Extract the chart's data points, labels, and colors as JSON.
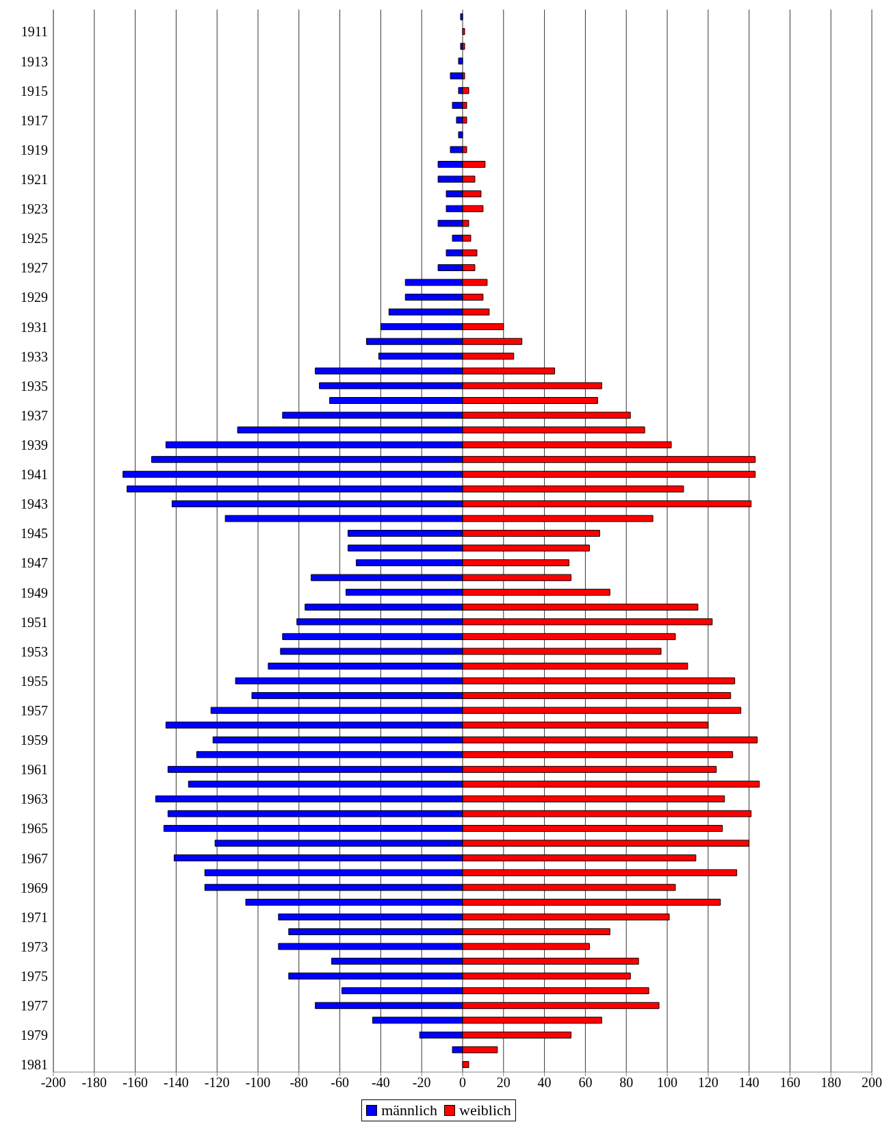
{
  "chart_data": {
    "type": "bar",
    "orientation": "horizontal",
    "stacked": true,
    "categories": [
      null,
      "1911",
      null,
      "1913",
      null,
      "1915",
      null,
      "1917",
      null,
      "1919",
      null,
      "1921",
      null,
      "1923",
      null,
      "1925",
      null,
      "1927",
      null,
      "1929",
      null,
      "1931",
      null,
      "1933",
      null,
      "1935",
      null,
      "1937",
      null,
      "1939",
      null,
      "1941",
      null,
      "1943",
      null,
      "1945",
      null,
      "1947",
      null,
      "1949",
      null,
      "1951",
      null,
      "1953",
      null,
      "1955",
      null,
      "1957",
      null,
      "1959",
      null,
      "1961",
      null,
      "1963",
      null,
      "1965",
      null,
      "1967",
      null,
      "1969",
      null,
      "1971",
      null,
      "1973",
      null,
      "1975",
      null,
      "1977",
      null,
      "1979",
      null,
      "1981"
    ],
    "series": [
      {
        "name": "männlich",
        "color": "#0000ff",
        "values": [
          -1,
          0,
          -1,
          -2,
          -6,
          -2,
          -5,
          -3,
          -2,
          -6,
          -12,
          -12,
          -8,
          -8,
          -12,
          -5,
          -8,
          -12,
          -28,
          -28,
          -36,
          -40,
          -47,
          -41,
          -72,
          -70,
          -65,
          -88,
          -110,
          -145,
          -152,
          -166,
          -164,
          -142,
          -116,
          -56,
          -56,
          -52,
          -74,
          -57,
          -77,
          -81,
          -88,
          -89,
          -95,
          -111,
          -103,
          -123,
          -145,
          -122,
          -130,
          -144,
          -134,
          -150,
          -144,
          -146,
          -121,
          -141,
          -126,
          -126,
          -106,
          -90,
          -85,
          -90,
          -64,
          -85,
          -59,
          -72,
          -44,
          -21,
          -5,
          0
        ]
      },
      {
        "name": "weiblich",
        "color": "#ff0000",
        "values": [
          0,
          1,
          1,
          0,
          1,
          3,
          2,
          2,
          0,
          2,
          11,
          6,
          9,
          10,
          3,
          4,
          7,
          6,
          12,
          10,
          13,
          20,
          29,
          25,
          45,
          68,
          66,
          82,
          89,
          102,
          143,
          143,
          108,
          141,
          93,
          67,
          62,
          52,
          53,
          72,
          115,
          122,
          104,
          97,
          110,
          133,
          131,
          136,
          120,
          144,
          132,
          124,
          145,
          128,
          141,
          127,
          140,
          114,
          134,
          104,
          126,
          101,
          72,
          62,
          86,
          82,
          91,
          96,
          68,
          53,
          17,
          3
        ]
      }
    ],
    "xlim": [
      -200,
      200
    ],
    "xticks": [
      -200,
      -180,
      -160,
      -140,
      -120,
      -100,
      -80,
      -60,
      -40,
      -20,
      0,
      20,
      40,
      60,
      80,
      100,
      120,
      140,
      160,
      180,
      200
    ],
    "grid": "x",
    "legend": "bottom"
  }
}
